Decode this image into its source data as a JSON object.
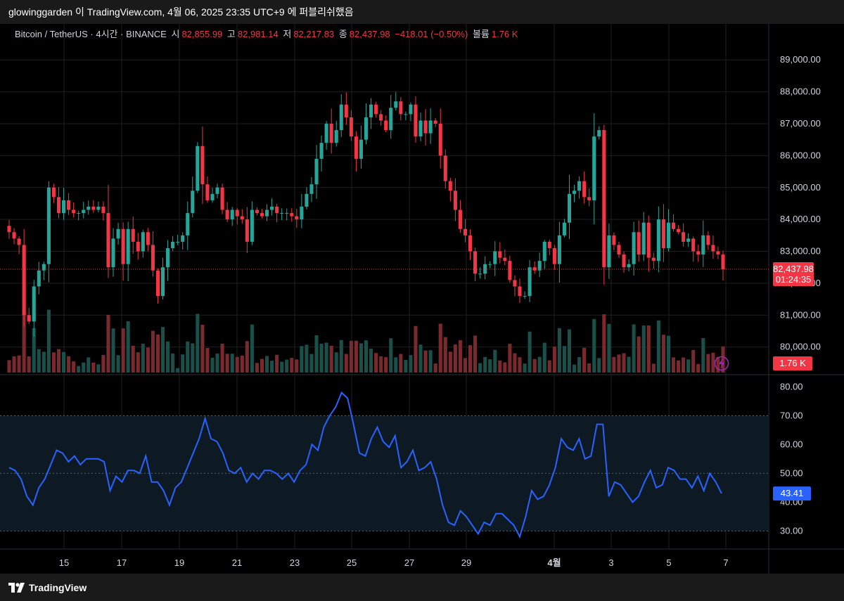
{
  "header": {
    "caption": "glowinggarden 이 TradingView.com, 4월 06, 2025 23:35 UTC+9 에 퍼블리쉬했음"
  },
  "legend": {
    "symbol": "Bitcoin / TetherUS · 4시간 · BINANCE",
    "open_label": "시",
    "open": "82,855.99",
    "high_label": "고",
    "high": "82,981.14",
    "low_label": "저",
    "low": "82,217.83",
    "close_label": "종",
    "close": "82,437.98",
    "change": "−418.01 (−0.50%)",
    "volume_label": "볼륨",
    "volume": "1.76 K"
  },
  "footer": {
    "brand": "TradingView"
  },
  "colors": {
    "up": "#26a69a",
    "down": "#f23645",
    "rsi": "#2962ff",
    "volume_up": "#1b4f4a",
    "volume_down": "#7a2a2e",
    "rsi_band": "#0d1a24"
  },
  "chart_data": [
    {
      "type": "candlestick",
      "title": "Bitcoin / TetherUS · 4시간 · BINANCE",
      "ylim": [
        79200,
        89600
      ],
      "y_ticks": [
        "80,000.00",
        "81,000.00",
        "82,000.00",
        "83,000.00",
        "84,000.00",
        "85,000.00",
        "86,000.00",
        "87,000.00",
        "88,000.00",
        "89,000.00"
      ],
      "x_ticks": [
        "15",
        "17",
        "19",
        "21",
        "23",
        "25",
        "27",
        "29",
        "4월",
        "3",
        "5",
        "7"
      ],
      "last_price_label": "82,437.98",
      "countdown_label": "01:24:35",
      "volume_label": "1.76 K",
      "grid": true,
      "close_path": [
        83600,
        83400,
        83200,
        81000,
        80800,
        81900,
        82400,
        82600,
        85000,
        84700,
        84200,
        84600,
        84300,
        84200,
        84200,
        84300,
        84400,
        84300,
        84400,
        84200,
        82500,
        83400,
        83700,
        82600,
        83700,
        83300,
        83000,
        83600,
        83200,
        82400,
        81600,
        82500,
        83100,
        83300,
        83300,
        83500,
        84200,
        84900,
        86300,
        85100,
        84600,
        84800,
        85000,
        84300,
        84000,
        84300,
        84100,
        84000,
        83300,
        84300,
        84200,
        84100,
        84300,
        84400,
        84200,
        84200,
        84200,
        84100,
        84000,
        84400,
        84800,
        85100,
        85900,
        86400,
        87000,
        86400,
        86800,
        87600,
        87200,
        86600,
        85900,
        86500,
        87200,
        87600,
        87300,
        87100,
        86800,
        87500,
        87700,
        87300,
        87300,
        87600,
        86600,
        87100,
        86700,
        87100,
        87000,
        86000,
        85200,
        84900,
        84300,
        83700,
        83500,
        83000,
        82300,
        82300,
        82600,
        82600,
        83000,
        82800,
        82700,
        82100,
        81900,
        81600,
        81600,
        82500,
        82400,
        82700,
        83300,
        83100,
        82600,
        83500,
        83900,
        84800,
        84900,
        85200,
        84700,
        84600,
        86600,
        86800,
        82500,
        83500,
        83200,
        82900,
        82500,
        82600,
        83600,
        82900,
        83900,
        82800,
        82700,
        84000,
        83100,
        83900,
        83700,
        83600,
        83300,
        83400,
        83000,
        82900,
        83500,
        83200,
        83000,
        82900,
        82438
      ]
    },
    {
      "type": "line",
      "name": "RSI",
      "ylim": [
        24,
        83
      ],
      "y_ticks": [
        "30.00",
        "40.00",
        "50.00",
        "60.00",
        "70.00",
        "80.00"
      ],
      "band": [
        30,
        70
      ],
      "midline": 50,
      "last_value_label": "43.41",
      "values": [
        52,
        51,
        48,
        42,
        39,
        45,
        48,
        53,
        58,
        57,
        54,
        56,
        53,
        55,
        55,
        55,
        54,
        44,
        49,
        47,
        51,
        51,
        50,
        56,
        47,
        47,
        44,
        39,
        45,
        47,
        52,
        57,
        62,
        69,
        62,
        61,
        57,
        51,
        50,
        52,
        47,
        50,
        48,
        51,
        51,
        50,
        48,
        50,
        47,
        51,
        53,
        60,
        58,
        66,
        70,
        73,
        78,
        76,
        67,
        57,
        56,
        62,
        66,
        61,
        59,
        63,
        52,
        54,
        58,
        51,
        52,
        54,
        48,
        39,
        33,
        32,
        37,
        35,
        32,
        29,
        33,
        32,
        36,
        36,
        34,
        32,
        28,
        35,
        44,
        41,
        42,
        46,
        52,
        62,
        59,
        58,
        62,
        55,
        56,
        67,
        67,
        42,
        47,
        46,
        43,
        40,
        42,
        47,
        51,
        45,
        46,
        52,
        51,
        48,
        48,
        45,
        49,
        44,
        50,
        47,
        43
      ]
    }
  ]
}
